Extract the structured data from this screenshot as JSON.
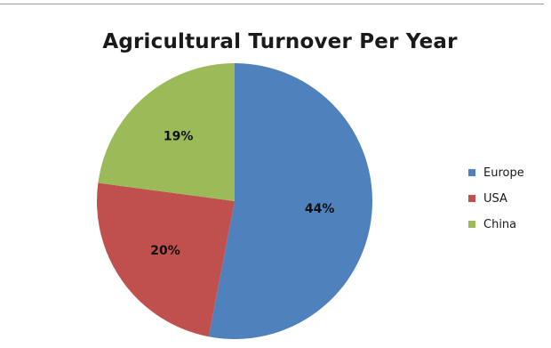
{
  "chart_data": {
    "type": "pie",
    "title": "Agricultural Turnover Per Year",
    "slices": [
      {
        "name": "Europe",
        "value": 44,
        "label": "44%",
        "color": "#4F81BD"
      },
      {
        "name": "USA",
        "value": 20,
        "label": "20%",
        "color": "#C0504D"
      },
      {
        "name": "China",
        "value": 19,
        "label": "19%",
        "color": "#9BBB59"
      }
    ],
    "start_angle_deg": 0,
    "direction": "clockwise",
    "legend": {
      "position": "right",
      "items": [
        "Europe",
        "USA",
        "China"
      ]
    }
  }
}
